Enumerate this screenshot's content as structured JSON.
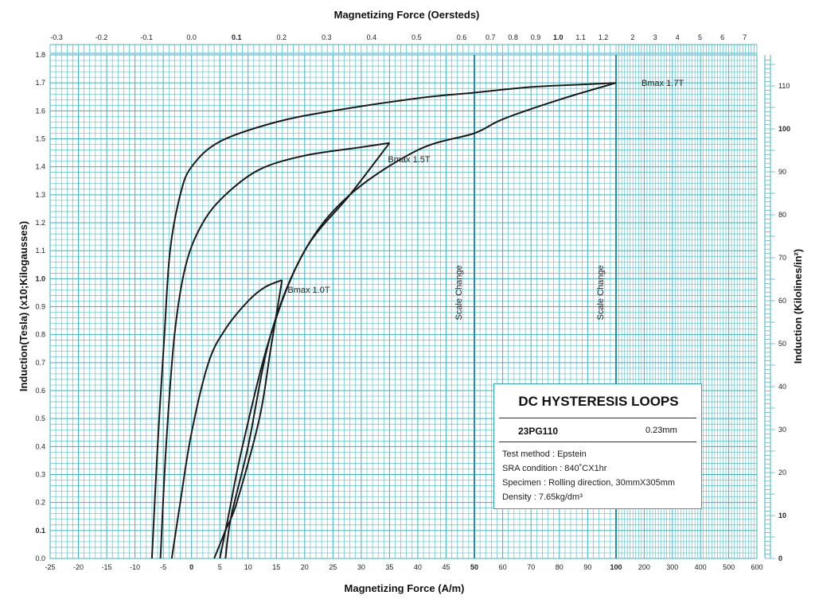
{
  "chart_data": {
    "type": "line",
    "title": "",
    "xlabel_top": "Magnetizing Force (Oersteds)",
    "xlabel_bottom": "Magnetizing Force (A/m)",
    "ylabel_left": "Induction(Tesla) (x10;Kilogausses)",
    "ylabel_right": "Induction (Kilolines/in²)",
    "x_bottom_ticks": [
      "-25",
      "-20",
      "-15",
      "-10",
      "-5",
      "0",
      "5",
      "10",
      "15",
      "20",
      "25",
      "30",
      "35",
      "40",
      "45",
      "50",
      "60",
      "70",
      "80",
      "90",
      "100",
      "200",
      "300",
      "400",
      "500",
      "600"
    ],
    "x_top_ticks": [
      "-0.3",
      "-0.2",
      "-0.1",
      "0.0",
      "0.1",
      "0.2",
      "0.3",
      "0.4",
      "0.5",
      "0.6",
      "0.7",
      "0.8",
      "0.9",
      "1.0",
      "1.1",
      "1.2",
      "2",
      "3",
      "4",
      "5",
      "6",
      "7"
    ],
    "y_left_ticks": [
      "0.0",
      "0.1",
      "0.2",
      "0.3",
      "0.4",
      "0.5",
      "0.6",
      "0.7",
      "0.8",
      "0.9",
      "1.0",
      "1.1",
      "1.2",
      "1.3",
      "1.4",
      "1.5",
      "1.6",
      "1.7",
      "1.8"
    ],
    "y_right_ticks": [
      "0",
      "10",
      "20",
      "30",
      "40",
      "50",
      "60",
      "70",
      "80",
      "90",
      "100",
      "110"
    ],
    "x_scale": "piecewise: linear -25..50, linear 50..100, linear 100..600",
    "ylim": [
      0,
      1.8
    ],
    "grid": true,
    "scale_change_lines": [
      {
        "x": 50,
        "label": "Scale Change"
      },
      {
        "x": 100,
        "label": "Scale Change"
      }
    ],
    "series": [
      {
        "name": "Bmax 1.7T",
        "upper": [
          [
            -7,
            0
          ],
          [
            -6,
            0.4
          ],
          [
            -4.8,
            0.8
          ],
          [
            -3.8,
            1.1
          ],
          [
            -2,
            1.3
          ],
          [
            0,
            1.4
          ],
          [
            5,
            1.49
          ],
          [
            15,
            1.56
          ],
          [
            25,
            1.6
          ],
          [
            40,
            1.645
          ],
          [
            50,
            1.665
          ],
          [
            70,
            1.685
          ],
          [
            90,
            1.695
          ],
          [
            100,
            1.7
          ]
        ],
        "lower": [
          [
            6,
            0
          ],
          [
            7,
            0.15
          ],
          [
            10,
            0.4
          ],
          [
            14,
            0.8
          ],
          [
            20,
            1.1
          ],
          [
            28,
            1.3
          ],
          [
            40,
            1.46
          ],
          [
            50,
            1.52
          ],
          [
            60,
            1.57
          ],
          [
            80,
            1.64
          ],
          [
            100,
            1.7
          ]
        ]
      },
      {
        "name": "Bmax 1.5T",
        "upper": [
          [
            -5.5,
            0
          ],
          [
            -4.5,
            0.4
          ],
          [
            -3,
            0.8
          ],
          [
            -1,
            1.05
          ],
          [
            2,
            1.2
          ],
          [
            6,
            1.3
          ],
          [
            12,
            1.39
          ],
          [
            20,
            1.44
          ],
          [
            30,
            1.47
          ],
          [
            35,
            1.485
          ]
        ],
        "lower": [
          [
            5,
            0
          ],
          [
            6.5,
            0.15
          ],
          [
            9,
            0.4
          ],
          [
            14,
            0.8
          ],
          [
            20,
            1.1
          ],
          [
            28,
            1.3
          ],
          [
            35,
            1.485
          ]
        ]
      },
      {
        "name": "Bmax 1.0T",
        "upper": [
          [
            -3.5,
            0
          ],
          [
            -2,
            0.2
          ],
          [
            0,
            0.45
          ],
          [
            3,
            0.7
          ],
          [
            6,
            0.82
          ],
          [
            10,
            0.92
          ],
          [
            13,
            0.97
          ],
          [
            16,
            0.995
          ]
        ],
        "lower": [
          [
            4,
            0
          ],
          [
            6,
            0.1
          ],
          [
            8,
            0.2
          ],
          [
            12,
            0.5
          ],
          [
            14,
            0.75
          ],
          [
            16,
            0.995
          ]
        ]
      }
    ],
    "annotations": [
      {
        "text": "Bmax 1.7T",
        "x": 100,
        "y": 1.7
      },
      {
        "text": "Bmax 1.5T",
        "x": 35,
        "y": 1.485
      },
      {
        "text": "Bmax 1.0T",
        "x": 16,
        "y": 0.995
      }
    ],
    "colors": {
      "grid": "#3bb3c1",
      "scale_line": "#1f8fb0",
      "curve": "#1a1a1a"
    }
  },
  "info_box": {
    "title": "DC HYSTERESIS LOOPS",
    "grade": "23PG110",
    "thickness": "0.23mm",
    "test_method": "Test method : Epstein",
    "sra_condition": "SRA condition : 840˚CX1hr",
    "specimen": "Specimen : Rolling direction, 30mmX305mm",
    "density": "Density : 7.65kg/dm³"
  }
}
